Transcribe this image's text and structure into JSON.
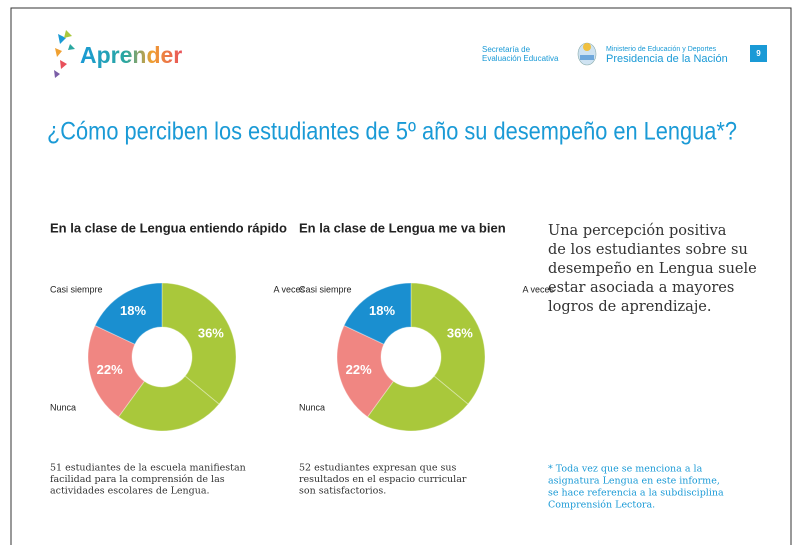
{
  "header": {
    "logo": "Aprender",
    "secretaria": [
      "Secretaría de",
      "Evaluación Educativa"
    ],
    "ministerio": "Ministerio de Educación y Deportes",
    "presidencia": "Presidencia de la Nación",
    "page": "9"
  },
  "title": "¿Cómo perciben los estudiantes de 5º año su desempeño en Lengua*?",
  "chart_data": [
    {
      "type": "donut",
      "title": "En la clase de Lengua entiendo rápido",
      "categories": [
        "A veces",
        null,
        "Nunca",
        "Casi siempre"
      ],
      "values": [
        36,
        24,
        22,
        18
      ],
      "value_labels": [
        "36%",
        null,
        "22%",
        "18%"
      ],
      "colors": [
        "#a9c83b",
        "#a9c83b",
        "#f08682",
        "#1a8fd0"
      ],
      "caption": [
        "51 estudiantes de la escuela manifiestan",
        "facilidad para la comprensión de las",
        "actividades escolares de Lengua."
      ]
    },
    {
      "type": "donut",
      "title": "En la clase de Lengua me va bien",
      "categories": [
        "A veces",
        null,
        "Nunca",
        "Casi siempre"
      ],
      "values": [
        36,
        24,
        22,
        18
      ],
      "value_labels": [
        "36%",
        null,
        "22%",
        "18%"
      ],
      "colors": [
        "#a9c83b",
        "#a9c83b",
        "#f08682",
        "#1a8fd0"
      ],
      "caption": [
        "52 estudiantes expresan que sus",
        "resultados en el espacio curricular",
        "son satisfactorios."
      ]
    }
  ],
  "sidebar": {
    "text": [
      "Una percepción positiva",
      "de los estudiantes sobre su",
      "desempeño en Lengua suele",
      "estar asociada a mayores",
      "logros de aprendizaje."
    ],
    "footnote": [
      "* Toda vez que se menciona a la",
      "asignatura Lengua en este informe,",
      "se hace referencia a la subdisciplina",
      "Comprensión Lectora."
    ]
  }
}
